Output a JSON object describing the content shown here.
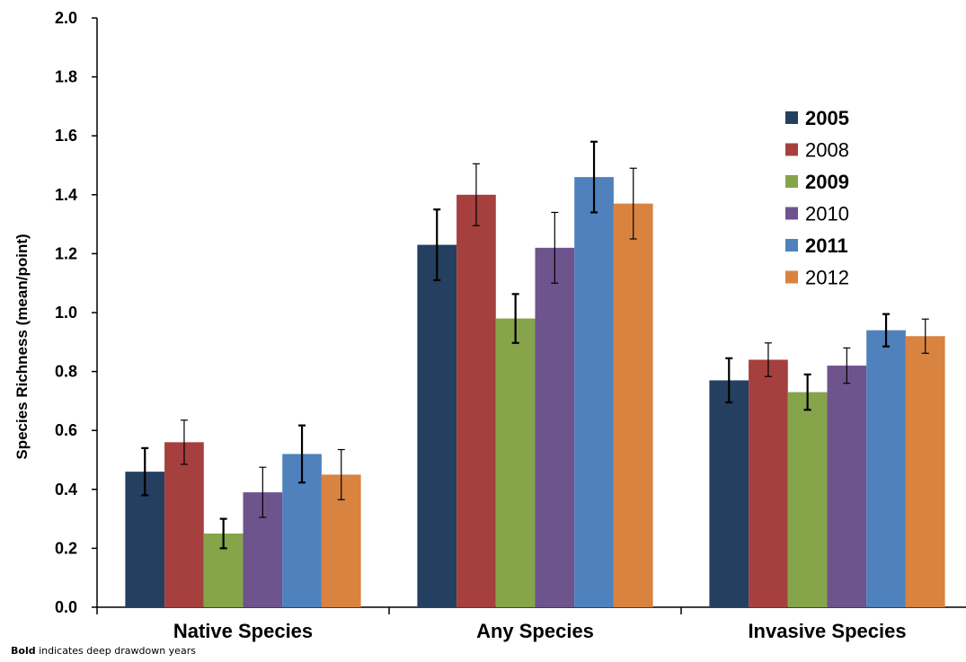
{
  "chart_data": {
    "type": "bar",
    "categories": [
      "Native Species",
      "Any Species",
      "Invasive Species"
    ],
    "ylabel": "Species Richness (mean/point)",
    "ylim": [
      0,
      2.0
    ],
    "yticks": [
      "0.0",
      "0.2",
      "0.4",
      "0.6",
      "0.8",
      "1.0",
      "1.2",
      "1.4",
      "1.6",
      "1.8",
      "2.0"
    ],
    "legend_position": "right",
    "grid": false,
    "series": [
      {
        "name": "2005",
        "bold": true,
        "color": "#243F60",
        "values": [
          0.46,
          1.23,
          0.77
        ],
        "errors": [
          0.08,
          0.12,
          0.075
        ]
      },
      {
        "name": "2008",
        "bold": false,
        "color": "#A5403E",
        "values": [
          0.56,
          1.4,
          0.84
        ],
        "errors": [
          0.075,
          0.105,
          0.057
        ]
      },
      {
        "name": "2009",
        "bold": true,
        "color": "#86A44A",
        "values": [
          0.25,
          0.98,
          0.73
        ],
        "errors": [
          0.05,
          0.083,
          0.06
        ]
      },
      {
        "name": "2010",
        "bold": false,
        "color": "#6E548D",
        "values": [
          0.39,
          1.22,
          0.82
        ],
        "errors": [
          0.085,
          0.12,
          0.06
        ]
      },
      {
        "name": "2011",
        "bold": true,
        "color": "#4F81BD",
        "values": [
          0.52,
          1.46,
          0.94
        ],
        "errors": [
          0.097,
          0.12,
          0.055
        ]
      },
      {
        "name": "2012",
        "bold": false,
        "color": "#D88340",
        "values": [
          0.45,
          1.37,
          0.92
        ],
        "errors": [
          0.085,
          0.12,
          0.058
        ]
      }
    ]
  },
  "footnote": {
    "bold_word": "Bold",
    "text": " indicates deep drawdown years"
  }
}
